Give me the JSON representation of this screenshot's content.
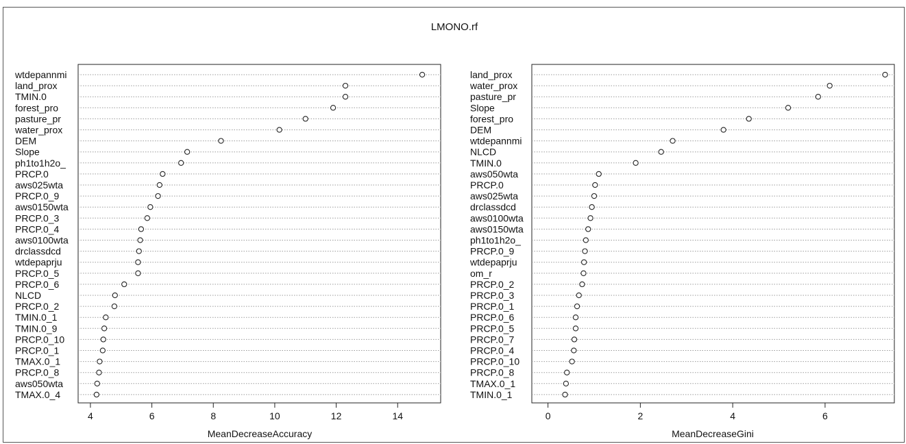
{
  "chart_data": {
    "title": "LMONO.rf",
    "type": "scatter",
    "panels": [
      {
        "xlabel": "MeanDecreaseAccuracy",
        "xlim": [
          3.6,
          15.4
        ],
        "xticks": [
          4,
          6,
          8,
          10,
          12,
          14
        ],
        "variables": [
          "wtdepannmi",
          "land_prox",
          "TMIN.0",
          "forest_pro",
          "pasture_pr",
          "water_prox",
          "DEM",
          "Slope",
          "ph1to1h2o_",
          "PRCP.0",
          "aws025wta",
          "PRCP.0_9",
          "aws0150wta",
          "PRCP.0_3",
          "PRCP.0_4",
          "aws0100wta",
          "drclassdcd",
          "wtdepaprju",
          "PRCP.0_5",
          "PRCP.0_6",
          "NLCD",
          "PRCP.0_2",
          "TMIN.0_1",
          "TMIN.0_9",
          "PRCP.0_10",
          "PRCP.0_1",
          "TMAX.0_1",
          "PRCP.0_8",
          "aws050wta",
          "TMAX.0_4"
        ],
        "values": [
          14.8,
          12.3,
          12.3,
          11.9,
          11.0,
          10.15,
          8.25,
          7.15,
          6.95,
          6.35,
          6.25,
          6.2,
          5.95,
          5.85,
          5.65,
          5.62,
          5.58,
          5.55,
          5.55,
          5.1,
          4.8,
          4.78,
          4.5,
          4.45,
          4.42,
          4.4,
          4.3,
          4.28,
          4.22,
          4.2
        ]
      },
      {
        "xlabel": "MeanDecreaseGini",
        "xlim": [
          -0.35,
          7.5
        ],
        "xticks": [
          0,
          2,
          4,
          6
        ],
        "variables": [
          "land_prox",
          "water_prox",
          "pasture_pr",
          "Slope",
          "forest_pro",
          "DEM",
          "wtdepannmi",
          "NLCD",
          "TMIN.0",
          "aws050wta",
          "PRCP.0",
          "aws025wta",
          "drclassdcd",
          "aws0100wta",
          "aws0150wta",
          "ph1to1h2o_",
          "PRCP.0_9",
          "wtdepaprju",
          "om_r",
          "PRCP.0_2",
          "PRCP.0_3",
          "PRCP.0_1",
          "PRCP.0_6",
          "PRCP.0_5",
          "PRCP.0_7",
          "PRCP.0_4",
          "PRCP.0_10",
          "PRCP.0_8",
          "TMAX.0_1",
          "TMIN.0_1"
        ],
        "values": [
          7.3,
          6.1,
          5.85,
          5.2,
          4.35,
          3.8,
          2.7,
          2.45,
          1.9,
          1.1,
          1.02,
          1.0,
          0.95,
          0.92,
          0.87,
          0.82,
          0.8,
          0.78,
          0.77,
          0.74,
          0.67,
          0.63,
          0.6,
          0.6,
          0.57,
          0.56,
          0.52,
          0.41,
          0.39,
          0.37
        ]
      }
    ]
  }
}
